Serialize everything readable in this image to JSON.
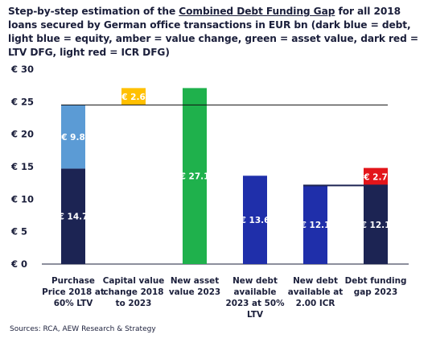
{
  "title": {
    "part1": "Step-by-step estimation of the ",
    "underlined": "Combined Debt Funding Gap",
    "part2": " for all 2018 loans secured by German office transactions in EUR bn (dark blue = debt, light blue = equity, amber = value change, green = asset value, dark red = LTV DFG, light red = ICR DFG)"
  },
  "source": "Sources: RCA, AEW Research & Strategy",
  "colors": {
    "dark_blue": "#1c2453",
    "light_blue": "#5b9bd5",
    "amber": "#ffc000",
    "green": "#1fb14c",
    "blue": "#1f2faa",
    "red": "#e3151a",
    "axis_text": "#1b1f3b"
  },
  "chart_data": {
    "type": "bar",
    "stacked": true,
    "ylim": [
      0,
      30
    ],
    "ytick_labels": [
      "€ 0",
      "€ 5",
      "€ 10",
      "€ 15",
      "€ 20",
      "€ 25",
      "€ 30"
    ],
    "yticks": [
      0,
      5,
      10,
      15,
      20,
      25,
      30
    ],
    "grid": false,
    "categories": [
      [
        "Purchase",
        "Price 2018 at",
        "60% LTV"
      ],
      [
        "Capital value",
        "change 2018",
        "to 2023"
      ],
      [
        "New asset",
        "value 2023"
      ],
      [
        "New debt",
        "available",
        "2023 at 50%",
        "LTV"
      ],
      [
        "New debt",
        "available at",
        "2.00 ICR"
      ],
      [
        "Debt funding",
        "gap 2023"
      ]
    ],
    "bars": [
      {
        "category_index": 0,
        "segments": [
          {
            "start": 0,
            "end": 14.7,
            "value": 14.7,
            "label": "€ 14.7",
            "color": "dark_blue"
          },
          {
            "start": 14.7,
            "end": 24.5,
            "value": 9.8,
            "label": "€ 9.8",
            "color": "light_blue"
          }
        ]
      },
      {
        "category_index": 1,
        "segments": [
          {
            "start": 24.5,
            "end": 27.1,
            "value": 2.6,
            "label": "€ 2.6",
            "color": "amber"
          }
        ]
      },
      {
        "category_index": 2,
        "segments": [
          {
            "start": 0,
            "end": 27.1,
            "value": 27.1,
            "label": "€ 27.1",
            "color": "green"
          }
        ]
      },
      {
        "category_index": 3,
        "segments": [
          {
            "start": 0,
            "end": 13.6,
            "value": 13.6,
            "label": "€ 13.6",
            "color": "blue"
          }
        ]
      },
      {
        "category_index": 4,
        "segments": [
          {
            "start": 0,
            "end": 12.1,
            "value": 12.1,
            "label": "€ 12.1",
            "color": "blue"
          }
        ]
      },
      {
        "category_index": 5,
        "segments": [
          {
            "start": 0,
            "end": 12.1,
            "value": 12.1,
            "label": "€ 12.1",
            "color": "dark_blue"
          },
          {
            "start": 12.1,
            "end": 14.8,
            "value": 2.7,
            "label": "€ 2.7",
            "color": "red"
          }
        ]
      }
    ],
    "reference_lines": [
      {
        "y": 24.5,
        "from_category": 0,
        "to_category": 5
      },
      {
        "y": 12.1,
        "from_category": 4,
        "to_category": 5
      }
    ]
  }
}
